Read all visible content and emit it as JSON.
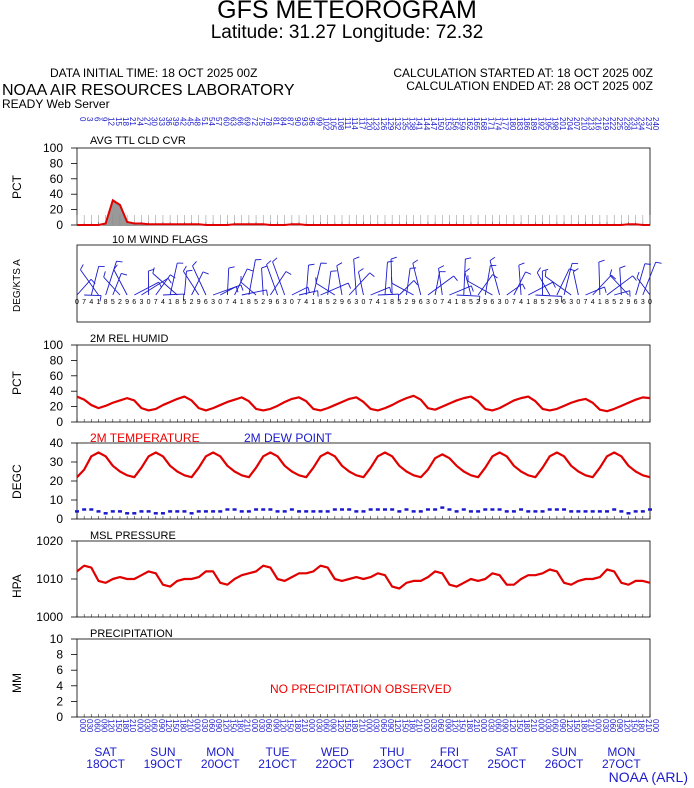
{
  "header": {
    "title": "GFS METEOROGRAM",
    "subtitle": "Latitude: 31.27 Longitude:  72.32",
    "init_time": "DATA INITIAL TIME: 18 OCT 2025 00Z",
    "calc_started": "CALCULATION STARTED AT: 18 OCT 2025 00Z",
    "calc_ended": "CALCULATION ENDED AT: 28 OCT 2025 00Z",
    "org": "NOAA AIR RESOURCES LABORATORY",
    "server": "READY Web Server",
    "credit": "NOAA (ARL)"
  },
  "forecast_hours_top": [
    "0",
    "3",
    "6",
    "9",
    "12",
    "15",
    "18",
    "21",
    "24",
    "27",
    "30",
    "33",
    "36",
    "39",
    "42",
    "45",
    "48",
    "51",
    "54",
    "57",
    "60",
    "63",
    "66",
    "69",
    "72",
    "75",
    "78",
    "81",
    "84",
    "87",
    "90",
    "93",
    "96",
    "99",
    "102",
    "105",
    "108",
    "111",
    "114",
    "117",
    "120",
    "123",
    "126",
    "129",
    "132",
    "135",
    "138",
    "141",
    "144",
    "147",
    "150",
    "153",
    "156",
    "159",
    "162",
    "165",
    "168",
    "171",
    "174",
    "177",
    "180",
    "183",
    "186",
    "189",
    "192",
    "195",
    "198",
    "201",
    "204",
    "207",
    "210",
    "213",
    "216",
    "219",
    "222",
    "225",
    "228",
    "231",
    "234",
    "237",
    "240"
  ],
  "panels": {
    "cloud": {
      "label": "AVG TTL CLD CVR",
      "ylabel": "PCT",
      "yticks": [
        "100",
        "80",
        "60",
        "40",
        "20",
        "0"
      ]
    },
    "wind": {
      "label": "10 M  WIND FLAGS",
      "ylabel": "DEG/KTS  A"
    },
    "rh": {
      "label": "2M REL HUMID",
      "ylabel": "PCT",
      "yticks": [
        "100",
        "80",
        "60",
        "40",
        "20",
        "0"
      ]
    },
    "temp": {
      "label_t": "2M TEMPERATURE",
      "label_d": "2M   DEW POINT",
      "ylabel": "DEGC",
      "yticks": [
        "40",
        "30",
        "20",
        "10",
        "0"
      ]
    },
    "pres": {
      "label": "MSL PRESSURE",
      "ylabel": "HPA",
      "yticks": [
        "1020",
        "1010",
        "1000"
      ]
    },
    "precip": {
      "label": "PRECIPITATION",
      "ylabel": "MM",
      "yticks": [
        "10",
        "8",
        "6",
        "4",
        "2",
        "0"
      ],
      "message": "NO PRECIPITATION OBSERVED"
    }
  },
  "days": [
    {
      "dow": "SAT",
      "date": "18OCT"
    },
    {
      "dow": "SUN",
      "date": "19OCT"
    },
    {
      "dow": "MON",
      "date": "20OCT"
    },
    {
      "dow": "TUE",
      "date": "21OCT"
    },
    {
      "dow": "WED",
      "date": "22OCT"
    },
    {
      "dow": "THU",
      "date": "23OCT"
    },
    {
      "dow": "FRI",
      "date": "24OCT"
    },
    {
      "dow": "SAT",
      "date": "25OCT"
    },
    {
      "dow": "SUN",
      "date": "26OCT"
    },
    {
      "dow": "MON",
      "date": "27OCT"
    }
  ],
  "colors": {
    "line": "#e00000",
    "dew": "#1a1acc",
    "cloud_fill": "#999999",
    "axis_blue": "#1a1acc"
  },
  "chart_data": [
    {
      "type": "area",
      "title": "AVG TTL CLD CVR",
      "ylabel": "PCT",
      "ylim": [
        0,
        100
      ],
      "x_hours": [
        0,
        3,
        6,
        9,
        12,
        15,
        18,
        21,
        24,
        27,
        30,
        33,
        36,
        39,
        42,
        45,
        48,
        51,
        54,
        57,
        60,
        63,
        66,
        69,
        72,
        75,
        78,
        81,
        84,
        87,
        90,
        93,
        96,
        99,
        102,
        105,
        108,
        111,
        114,
        117,
        120,
        123,
        126,
        129,
        132,
        135,
        138,
        141,
        144,
        147,
        150,
        153,
        156,
        159,
        162,
        165,
        168,
        171,
        174,
        177,
        180,
        183,
        186,
        189,
        192,
        195,
        198,
        201,
        204,
        207,
        210,
        213,
        216,
        219,
        222,
        225,
        228,
        231,
        234,
        237,
        240
      ],
      "values": [
        0,
        0,
        0,
        0,
        2,
        32,
        26,
        4,
        2,
        2,
        1,
        1,
        1,
        1,
        1,
        1,
        1,
        1,
        0,
        0,
        0,
        0,
        1,
        1,
        1,
        1,
        1,
        0,
        0,
        0,
        1,
        1,
        0,
        0,
        0,
        0,
        0,
        0,
        0,
        0,
        0,
        0,
        0,
        0,
        0,
        0,
        0,
        0,
        0,
        0,
        0,
        0,
        0,
        0,
        0,
        0,
        0,
        0,
        0,
        0,
        0,
        0,
        0,
        0,
        0,
        0,
        0,
        0,
        0,
        0,
        0,
        0,
        0,
        0,
        0,
        0,
        0,
        1,
        1,
        0,
        0
      ]
    },
    {
      "type": "line",
      "title": "2M REL HUMID",
      "ylabel": "PCT",
      "ylim": [
        0,
        100
      ],
      "x_hours": [
        0,
        3,
        6,
        9,
        12,
        15,
        18,
        21,
        24,
        27,
        30,
        33,
        36,
        39,
        42,
        45,
        48,
        51,
        54,
        57,
        60,
        63,
        66,
        69,
        72,
        75,
        78,
        81,
        84,
        87,
        90,
        93,
        96,
        99,
        102,
        105,
        108,
        111,
        114,
        117,
        120,
        123,
        126,
        129,
        132,
        135,
        138,
        141,
        144,
        147,
        150,
        153,
        156,
        159,
        162,
        165,
        168,
        171,
        174,
        177,
        180,
        183,
        186,
        189,
        192,
        195,
        198,
        201,
        204,
        207,
        210,
        213,
        216,
        219,
        222,
        225,
        228,
        231,
        234,
        237,
        240
      ],
      "values": [
        33,
        29,
        22,
        18,
        21,
        25,
        28,
        31,
        28,
        18,
        15,
        17,
        22,
        26,
        30,
        33,
        28,
        18,
        15,
        18,
        22,
        26,
        29,
        32,
        27,
        17,
        15,
        17,
        21,
        26,
        30,
        32,
        27,
        17,
        15,
        18,
        22,
        26,
        30,
        32,
        26,
        17,
        15,
        18,
        22,
        27,
        31,
        34,
        29,
        18,
        16,
        20,
        24,
        28,
        31,
        33,
        27,
        17,
        15,
        18,
        23,
        28,
        31,
        33,
        27,
        17,
        15,
        17,
        21,
        25,
        28,
        30,
        25,
        16,
        14,
        17,
        21,
        25,
        29,
        32,
        31
      ]
    },
    {
      "type": "line",
      "title": "2M TEMPERATURE / 2M DEW POINT",
      "ylabel": "DEGC",
      "ylim": [
        0,
        40
      ],
      "x_hours": [
        0,
        3,
        6,
        9,
        12,
        15,
        18,
        21,
        24,
        27,
        30,
        33,
        36,
        39,
        42,
        45,
        48,
        51,
        54,
        57,
        60,
        63,
        66,
        69,
        72,
        75,
        78,
        81,
        84,
        87,
        90,
        93,
        96,
        99,
        102,
        105,
        108,
        111,
        114,
        117,
        120,
        123,
        126,
        129,
        132,
        135,
        138,
        141,
        144,
        147,
        150,
        153,
        156,
        159,
        162,
        165,
        168,
        171,
        174,
        177,
        180,
        183,
        186,
        189,
        192,
        195,
        198,
        201,
        204,
        207,
        210,
        213,
        216,
        219,
        222,
        225,
        228,
        231,
        234,
        237,
        240
      ],
      "series": [
        {
          "name": "2M TEMPERATURE",
          "values": [
            22,
            26,
            33,
            35,
            33,
            28,
            25,
            23,
            22,
            27,
            33,
            35,
            33,
            28,
            25,
            23,
            22,
            27,
            33,
            35,
            33,
            28,
            25,
            23,
            22,
            27,
            33,
            35,
            33,
            28,
            25,
            23,
            22,
            27,
            33,
            35,
            33,
            28,
            25,
            23,
            22,
            27,
            33,
            35,
            33,
            28,
            25,
            23,
            22,
            26,
            32,
            34,
            32,
            28,
            25,
            23,
            22,
            27,
            33,
            35,
            33,
            28,
            25,
            23,
            22,
            27,
            33,
            35,
            33,
            28,
            25,
            23,
            22,
            27,
            33,
            35,
            33,
            28,
            25,
            23,
            22
          ]
        },
        {
          "name": "2M   DEW POINT",
          "values": [
            4,
            5,
            5,
            4,
            3,
            4,
            4,
            3,
            3,
            4,
            4,
            3,
            3,
            4,
            4,
            4,
            3,
            4,
            4,
            4,
            4,
            5,
            5,
            4,
            4,
            5,
            5,
            5,
            4,
            4,
            5,
            4,
            4,
            4,
            4,
            4,
            5,
            5,
            5,
            4,
            4,
            5,
            5,
            5,
            5,
            4,
            5,
            4,
            4,
            5,
            5,
            6,
            5,
            4,
            5,
            4,
            4,
            5,
            5,
            5,
            4,
            4,
            5,
            4,
            4,
            4,
            5,
            5,
            5,
            4,
            4,
            4,
            4,
            4,
            4,
            5,
            4,
            3,
            4,
            4,
            5
          ]
        }
      ]
    },
    {
      "type": "line",
      "title": "MSL PRESSURE",
      "ylabel": "HPA",
      "ylim": [
        1000,
        1020
      ],
      "x_hours": [
        0,
        3,
        6,
        9,
        12,
        15,
        18,
        21,
        24,
        27,
        30,
        33,
        36,
        39,
        42,
        45,
        48,
        51,
        54,
        57,
        60,
        63,
        66,
        69,
        72,
        75,
        78,
        81,
        84,
        87,
        90,
        93,
        96,
        99,
        102,
        105,
        108,
        111,
        114,
        117,
        120,
        123,
        126,
        129,
        132,
        135,
        138,
        141,
        144,
        147,
        150,
        153,
        156,
        159,
        162,
        165,
        168,
        171,
        174,
        177,
        180,
        183,
        186,
        189,
        192,
        195,
        198,
        201,
        204,
        207,
        210,
        213,
        216,
        219,
        222,
        225,
        228,
        231,
        234,
        237,
        240
      ],
      "values": [
        1012,
        1013.5,
        1013,
        1009.5,
        1009,
        1010,
        1010.5,
        1010,
        1010,
        1011,
        1012,
        1011.5,
        1008.5,
        1008,
        1009.5,
        1010,
        1010,
        1010.5,
        1012,
        1012,
        1009,
        1008.5,
        1010,
        1011,
        1011.5,
        1012,
        1013.5,
        1013,
        1010,
        1009.5,
        1010.5,
        1011.5,
        1011.5,
        1012,
        1013.5,
        1013,
        1010,
        1009.5,
        1010,
        1010.5,
        1010,
        1010.5,
        1011.5,
        1011,
        1008,
        1007.5,
        1009,
        1009.5,
        1009.5,
        1010.5,
        1012,
        1011.5,
        1008.5,
        1008,
        1009,
        1010,
        1009.5,
        1010,
        1011.5,
        1011,
        1008.5,
        1008.5,
        1010,
        1011,
        1011,
        1011.5,
        1012.5,
        1012,
        1009,
        1008.5,
        1009.5,
        1010,
        1010,
        1010.5,
        1012.5,
        1012,
        1009,
        1008.5,
        1009.5,
        1009.5,
        1009
      ]
    },
    {
      "type": "line",
      "title": "PRECIPITATION",
      "ylabel": "MM",
      "ylim": [
        0,
        10
      ],
      "values": []
    }
  ]
}
